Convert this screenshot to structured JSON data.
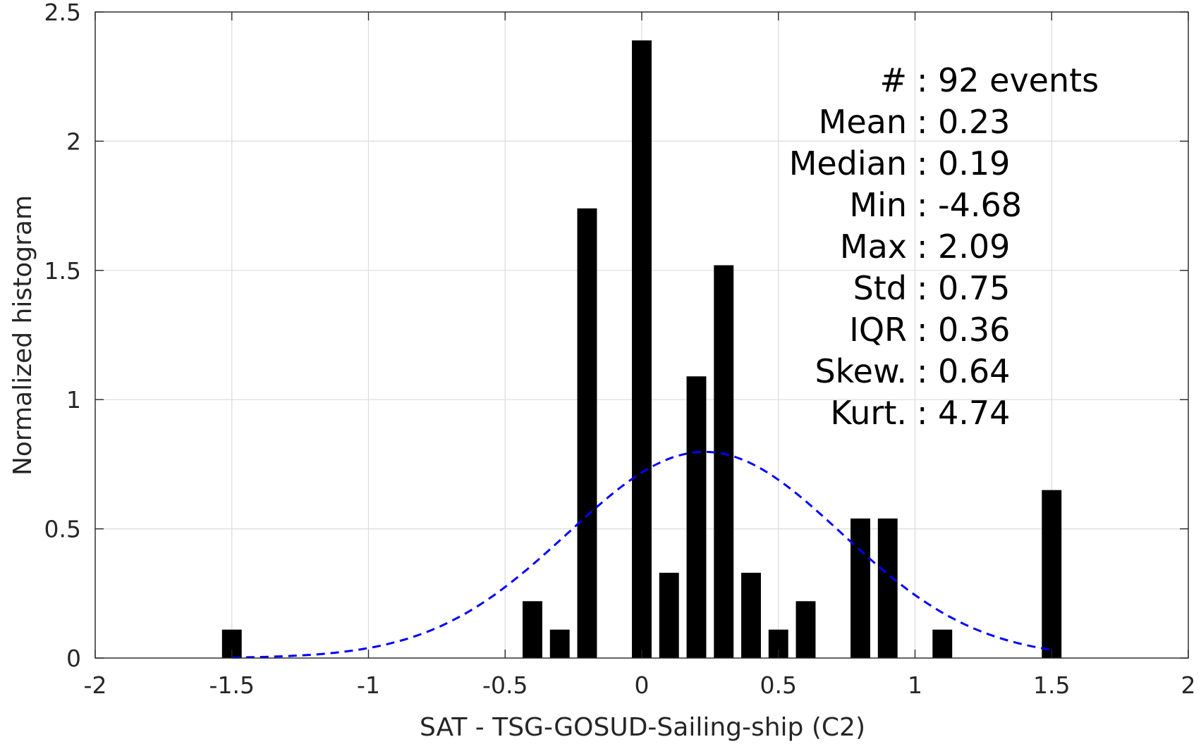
{
  "chart_data": {
    "type": "bar",
    "xlabel": "SAT - TSG-GOSUD-Sailing-ship (C2)",
    "ylabel": "Normalized histogram",
    "xlim": [
      -2,
      2
    ],
    "ylim": [
      0,
      2.5
    ],
    "xticks": [
      -2,
      -1.5,
      -1,
      -0.5,
      0,
      0.5,
      1,
      1.5,
      2
    ],
    "xtick_labels": [
      "-2",
      "-1.5",
      "-1",
      "-0.5",
      "0",
      "0.5",
      "1",
      "1.5",
      "2"
    ],
    "yticks": [
      0,
      0.5,
      1,
      1.5,
      2,
      2.5
    ],
    "ytick_labels": [
      "0",
      "0.5",
      "1",
      "1.5",
      "2",
      "2.5"
    ],
    "grid": true,
    "bin_width": 0.1,
    "bars": [
      {
        "x": -1.5,
        "y": 0.11
      },
      {
        "x": -0.4,
        "y": 0.22
      },
      {
        "x": -0.3,
        "y": 0.11
      },
      {
        "x": -0.2,
        "y": 1.74
      },
      {
        "x": 0.0,
        "y": 2.39
      },
      {
        "x": 0.1,
        "y": 0.33
      },
      {
        "x": 0.2,
        "y": 1.09
      },
      {
        "x": 0.3,
        "y": 1.52
      },
      {
        "x": 0.4,
        "y": 0.33
      },
      {
        "x": 0.5,
        "y": 0.11
      },
      {
        "x": 0.6,
        "y": 0.22
      },
      {
        "x": 0.8,
        "y": 0.54
      },
      {
        "x": 0.9,
        "y": 0.54
      },
      {
        "x": 1.1,
        "y": 0.11
      },
      {
        "x": 1.5,
        "y": 0.65
      }
    ],
    "bar_color": "#000000",
    "fit_curve": {
      "style": "dashed",
      "color": "#0000ff",
      "mean": 0.23,
      "std": 0.5,
      "x_range": [
        -1.5,
        1.5
      ]
    },
    "stats": [
      {
        "label": "#",
        "sep": ":",
        "value": "92 events"
      },
      {
        "label": "Mean",
        "sep": ":",
        "value": "0.23"
      },
      {
        "label": "Median",
        "sep": ":",
        "value": "0.19"
      },
      {
        "label": "Min",
        "sep": ":",
        "value": "-4.68"
      },
      {
        "label": "Max",
        "sep": ":",
        "value": "2.09"
      },
      {
        "label": "Std",
        "sep": ":",
        "value": "0.75"
      },
      {
        "label": "IQR",
        "sep": ":",
        "value": "0.36"
      },
      {
        "label": "Skew.",
        "sep": ":",
        "value": "0.64"
      },
      {
        "label": "Kurt.",
        "sep": ":",
        "value": "4.74"
      }
    ]
  }
}
